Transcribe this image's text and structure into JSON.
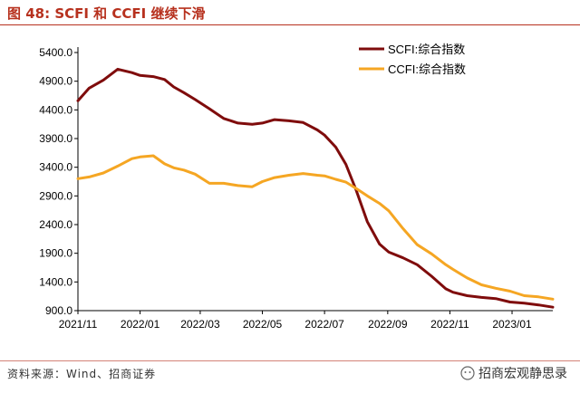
{
  "figure": {
    "title": "图 48:  SCFI 和 CCFI 继续下滑",
    "source": "资料来源：Wind、招商证券",
    "watermark": "招商宏观静思录",
    "brand_color": "#b7311e"
  },
  "chart_data": {
    "type": "line",
    "title": "",
    "xlabel": "",
    "ylabel": "",
    "ylim": [
      900,
      5400
    ],
    "yticks": [
      900,
      1400,
      1900,
      2400,
      2900,
      3400,
      3900,
      4400,
      4900,
      5400
    ],
    "ytick_labels": [
      "900.0",
      "1400.0",
      "1900.0",
      "2400.0",
      "2900.0",
      "3400.0",
      "3900.0",
      "4400.0",
      "4900.0",
      "5400.0"
    ],
    "xlim": [
      "2021-11-01",
      "2023-02-10"
    ],
    "xticks": [
      "2021-11-01",
      "2022-01-01",
      "2022-03-01",
      "2022-05-01",
      "2022-07-01",
      "2022-09-01",
      "2022-11-01",
      "2023-01-01"
    ],
    "xtick_labels": [
      "2021/11",
      "2022/01",
      "2022/03",
      "2022/05",
      "2022/07",
      "2022/09",
      "2022/11",
      "2023/01"
    ],
    "grid": false,
    "legend_position": "top-right",
    "series": [
      {
        "name": "SCFI:综合指数",
        "color": "#7f0c0c",
        "x": [
          "2021-11-01",
          "2021-11-12",
          "2021-11-26",
          "2021-12-10",
          "2021-12-24",
          "2022-01-01",
          "2022-01-14",
          "2022-01-25",
          "2022-02-03",
          "2022-02-13",
          "2022-02-24",
          "2022-03-10",
          "2022-03-24",
          "2022-04-07",
          "2022-04-21",
          "2022-05-01",
          "2022-05-13",
          "2022-05-27",
          "2022-06-10",
          "2022-06-24",
          "2022-07-01",
          "2022-07-12",
          "2022-07-22",
          "2022-08-01",
          "2022-08-12",
          "2022-08-24",
          "2022-09-02",
          "2022-09-16",
          "2022-09-30",
          "2022-10-14",
          "2022-10-28",
          "2022-11-04",
          "2022-11-18",
          "2022-12-02",
          "2022-12-16",
          "2022-12-30",
          "2023-01-13",
          "2023-01-27",
          "2023-02-10"
        ],
        "y": [
          4560,
          4780,
          4920,
          5110,
          5050,
          5000,
          4980,
          4930,
          4800,
          4700,
          4580,
          4420,
          4250,
          4170,
          4150,
          4170,
          4230,
          4210,
          4180,
          4050,
          3960,
          3750,
          3450,
          3000,
          2450,
          2060,
          1920,
          1820,
          1700,
          1500,
          1280,
          1220,
          1160,
          1130,
          1110,
          1050,
          1030,
          1000,
          960
        ]
      },
      {
        "name": "CCFI:综合指数",
        "color": "#f5a623",
        "x": [
          "2021-11-01",
          "2021-11-12",
          "2021-11-26",
          "2021-12-10",
          "2021-12-24",
          "2022-01-01",
          "2022-01-14",
          "2022-01-25",
          "2022-02-03",
          "2022-02-13",
          "2022-02-24",
          "2022-03-10",
          "2022-03-24",
          "2022-04-07",
          "2022-04-21",
          "2022-05-01",
          "2022-05-13",
          "2022-05-27",
          "2022-06-10",
          "2022-06-24",
          "2022-07-01",
          "2022-07-12",
          "2022-07-22",
          "2022-08-01",
          "2022-08-12",
          "2022-08-24",
          "2022-09-02",
          "2022-09-16",
          "2022-09-30",
          "2022-10-14",
          "2022-10-28",
          "2022-11-04",
          "2022-11-18",
          "2022-12-02",
          "2022-12-16",
          "2022-12-30",
          "2023-01-13",
          "2023-01-27",
          "2023-02-10"
        ],
        "y": [
          3200,
          3230,
          3300,
          3420,
          3550,
          3580,
          3600,
          3460,
          3390,
          3350,
          3280,
          3120,
          3120,
          3080,
          3060,
          3150,
          3220,
          3260,
          3290,
          3260,
          3250,
          3190,
          3140,
          3030,
          2900,
          2770,
          2640,
          2330,
          2050,
          1890,
          1700,
          1620,
          1470,
          1350,
          1290,
          1240,
          1160,
          1140,
          1100
        ]
      }
    ]
  }
}
